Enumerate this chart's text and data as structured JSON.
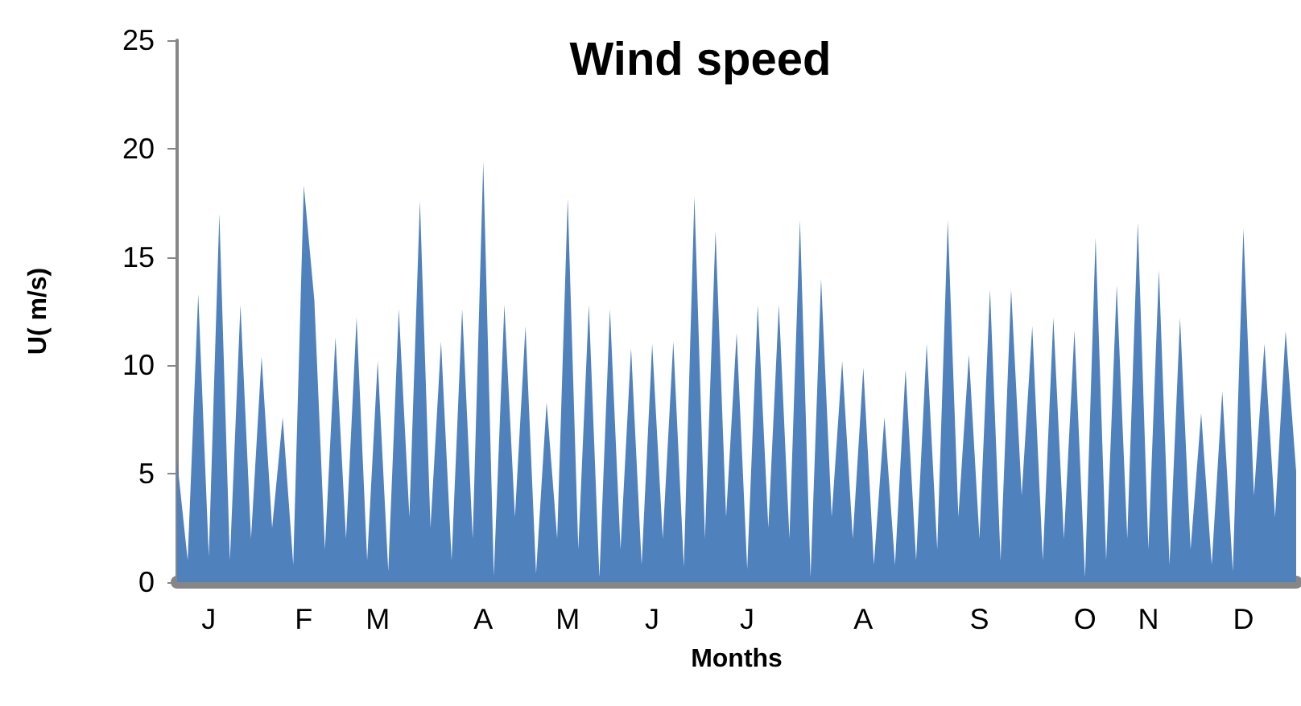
{
  "chart_data": {
    "type": "area",
    "title": "Wind speed",
    "xlabel": "Months",
    "ylabel": "U( m/s)",
    "color": "#4f81bd",
    "grid": false,
    "categories": [
      null,
      null,
      null,
      "J",
      null,
      null,
      null,
      null,
      null,
      null,
      null,
      null,
      "F",
      null,
      null,
      null,
      null,
      null,
      null,
      "M",
      null,
      null,
      null,
      null,
      null,
      null,
      null,
      null,
      null,
      "A",
      null,
      null,
      null,
      null,
      null,
      null,
      null,
      "M",
      null,
      null,
      null,
      null,
      null,
      null,
      null,
      "J",
      null,
      null,
      null,
      null,
      null,
      null,
      null,
      null,
      "J",
      null,
      null,
      null,
      null,
      null,
      null,
      null,
      null,
      null,
      null,
      "A",
      null,
      null,
      null,
      null,
      null,
      null,
      null,
      null,
      null,
      null,
      "S",
      null,
      null,
      null,
      null,
      null,
      null,
      null,
      null,
      null,
      "O",
      null,
      null,
      null,
      null,
      null,
      "N",
      null,
      null,
      null,
      null,
      null,
      null,
      null,
      null,
      "D",
      null,
      null,
      null,
      null,
      null
    ],
    "values": [
      5.6,
      1,
      13.3,
      1.2,
      17,
      1,
      12.8,
      2,
      10.4,
      2.5,
      7.6,
      0.8,
      18.3,
      13,
      1.5,
      11.3,
      2,
      12.2,
      1,
      10.2,
      0.5,
      12.6,
      3,
      17.6,
      2.5,
      11.1,
      1,
      12.6,
      2,
      19.4,
      0.3,
      12.8,
      3,
      11.8,
      0.4,
      8.3,
      2,
      17.7,
      1.5,
      12.8,
      0.2,
      12.6,
      1.5,
      10.8,
      0.8,
      11,
      2,
      11.1,
      0.7,
      17.8,
      2,
      16.2,
      3,
      11.5,
      0.6,
      12.8,
      2.5,
      12.8,
      2,
      16.7,
      0.2,
      14,
      3,
      10.2,
      2,
      9.9,
      0.8,
      7.6,
      0.8,
      9.8,
      1,
      11,
      1.5,
      16.7,
      3,
      10.5,
      2,
      13.5,
      1,
      13.5,
      4,
      11.8,
      1,
      12.2,
      2,
      11.6,
      0.2,
      15.9,
      1,
      13.7,
      2,
      16.6,
      1.5,
      14.4,
      0.8,
      12.2,
      1.5,
      7.8,
      0.8,
      8.8,
      0.5,
      16.3,
      4,
      11,
      3,
      11.6,
      5.1
    ],
    "ylim": [
      0,
      25
    ],
    "yticks": [
      0,
      5,
      10,
      15,
      20,
      25
    ]
  }
}
